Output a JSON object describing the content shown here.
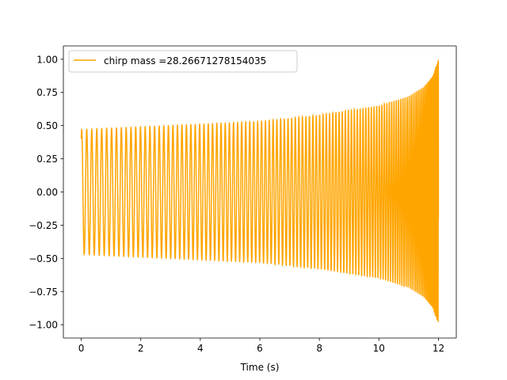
{
  "chart_data": {
    "type": "line",
    "xlabel": "Time (s)",
    "ylabel": "",
    "xlim": [
      -0.6,
      12.6
    ],
    "ylim": [
      -1.1,
      1.1
    ],
    "x_ticks": [
      0,
      2,
      4,
      6,
      8,
      10,
      12
    ],
    "x_tick_labels": [
      "0",
      "2",
      "4",
      "6",
      "8",
      "10",
      "12"
    ],
    "y_ticks": [
      -1.0,
      -0.75,
      -0.5,
      -0.25,
      0.0,
      0.25,
      0.5,
      0.75,
      1.0
    ],
    "y_tick_labels": [
      "−1.00",
      "−0.75",
      "−0.50",
      "−0.25",
      "0.00",
      "0.25",
      "0.50",
      "0.75",
      "1.00"
    ],
    "grid": false,
    "legend_position": "top-left",
    "series": [
      {
        "name": "chirp mass =28.26671278154035",
        "color": "#ffa500",
        "x_range": [
          0,
          12
        ],
        "start_value": 0.4,
        "envelope": [
          [
            0,
            0.47
          ],
          [
            2,
            0.49
          ],
          [
            4,
            0.51
          ],
          [
            6,
            0.53
          ],
          [
            8,
            0.58
          ],
          [
            10,
            0.65
          ],
          [
            11,
            0.72
          ],
          [
            11.5,
            0.79
          ],
          [
            11.8,
            0.87
          ],
          [
            12,
            1.0
          ]
        ]
      }
    ]
  }
}
